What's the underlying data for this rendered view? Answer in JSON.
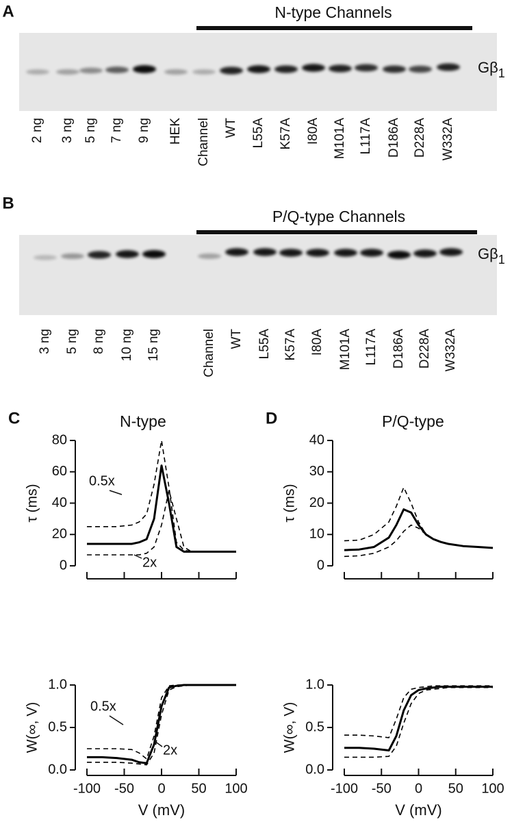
{
  "panels": {
    "A": {
      "label": "A",
      "title": "N-type Channels",
      "band_label": {
        "main": "Gβ",
        "sub": "1"
      },
      "lanes": [
        "2 ng",
        "3 ng",
        "5 ng",
        "7 ng",
        "9 ng",
        "HEK",
        "Channel",
        "WT",
        "L55A",
        "K57A",
        "I80A",
        "M101A",
        "L117A",
        "D186A",
        "D228A",
        "W332A"
      ]
    },
    "B": {
      "label": "B",
      "title": "P/Q-type Channels",
      "band_label": {
        "main": "Gβ",
        "sub": "1"
      },
      "lanes": [
        "3 ng",
        "5 ng",
        "8 ng",
        "10 ng",
        "15 ng",
        "Channel",
        "WT",
        "L55A",
        "K57A",
        "I80A",
        "M101A",
        "L117A",
        "D186A",
        "D228A",
        "W332A"
      ]
    }
  },
  "chart_data": [
    {
      "type": "line",
      "panel": "C",
      "title": "N-type",
      "ylabel": "τ (ms)",
      "xlim": [
        -100,
        100
      ],
      "xticks": [
        -100,
        -50,
        0,
        50,
        100
      ],
      "xtick_labels": false,
      "ylim": [
        0,
        80
      ],
      "yticks": [
        0,
        20,
        40,
        60,
        80
      ],
      "x": [
        -100,
        -80,
        -60,
        -40,
        -30,
        -20,
        -10,
        0,
        10,
        20,
        30,
        40,
        60,
        80,
        100
      ],
      "series": [
        {
          "color": "#000000",
          "dashed": false,
          "values": [
            14,
            14,
            14,
            14,
            15,
            17,
            30,
            64,
            40,
            12,
            9,
            9,
            9,
            9,
            9
          ]
        },
        {
          "color": "#000000",
          "dashed": true,
          "values": [
            25,
            25,
            25,
            26,
            28,
            33,
            52,
            80,
            50,
            15,
            10,
            9,
            9,
            9,
            9
          ]
        },
        {
          "color": "#000000",
          "dashed": true,
          "values": [
            7,
            7,
            7,
            7,
            7,
            8,
            12,
            26,
            48,
            30,
            12,
            9,
            9,
            9,
            9
          ]
        }
      ],
      "annotations": [
        "0.5x",
        "2x"
      ]
    },
    {
      "type": "line",
      "panel": "D",
      "title": "P/Q-type",
      "ylabel": "τ (ms)",
      "xlim": [
        -100,
        100
      ],
      "xticks": [
        -100,
        -50,
        0,
        50,
        100
      ],
      "xtick_labels": false,
      "ylim": [
        0,
        40
      ],
      "yticks": [
        0,
        10,
        20,
        30,
        40
      ],
      "x": [
        -100,
        -80,
        -60,
        -40,
        -30,
        -20,
        -10,
        0,
        10,
        20,
        30,
        40,
        60,
        80,
        100
      ],
      "series": [
        {
          "color": "#000000",
          "dashed": false,
          "values": [
            5,
            5.2,
            6,
            9,
            13,
            18,
            17,
            13,
            10,
            8.5,
            7.6,
            7,
            6.3,
            6,
            5.7
          ]
        },
        {
          "color": "#000000",
          "dashed": true,
          "values": [
            8,
            8.2,
            10,
            14,
            19,
            25,
            20,
            14,
            10,
            8.5,
            7.6,
            7,
            6.3,
            6,
            5.7
          ]
        },
        {
          "color": "#000000",
          "dashed": true,
          "values": [
            3,
            3.2,
            4,
            6,
            8,
            11,
            13,
            12,
            10,
            8.5,
            7.6,
            7,
            6.3,
            6,
            5.7
          ]
        }
      ]
    },
    {
      "type": "line",
      "ylabel": "W(∞, V)",
      "xlabel": "V (mV)",
      "xlim": [
        -100,
        100
      ],
      "xticks": [
        -100,
        -50,
        0,
        50,
        100
      ],
      "xtick_labels": true,
      "ylim": [
        0,
        1
      ],
      "yticks": [
        {
          "value": 0,
          "label": "0.0"
        },
        0.5,
        {
          "value": 1,
          "label": "1.0"
        }
      ],
      "x": [
        -100,
        -80,
        -60,
        -40,
        -30,
        -20,
        -10,
        0,
        10,
        20,
        30,
        40,
        60,
        80,
        100
      ],
      "series": [
        {
          "color": "#000000",
          "dashed": false,
          "values": [
            0.15,
            0.15,
            0.14,
            0.12,
            0.09,
            0.08,
            0.3,
            0.75,
            0.97,
            0.99,
            1,
            1,
            1,
            1,
            1
          ]
        },
        {
          "color": "#000000",
          "dashed": true,
          "values": [
            0.25,
            0.25,
            0.25,
            0.24,
            0.2,
            0.13,
            0.4,
            0.85,
            0.99,
            1,
            1,
            1,
            1,
            1,
            1
          ]
        },
        {
          "color": "#000000",
          "dashed": true,
          "values": [
            0.09,
            0.09,
            0.09,
            0.08,
            0.07,
            0.06,
            0.2,
            0.65,
            0.94,
            0.98,
            0.99,
            1,
            1,
            1,
            1
          ]
        }
      ],
      "annotations": [
        "0.5x",
        "2x"
      ]
    },
    {
      "type": "line",
      "ylabel": "W(∞, V)",
      "xlabel": "V (mV)",
      "xlim": [
        -100,
        100
      ],
      "xticks": [
        -100,
        -50,
        0,
        50,
        100
      ],
      "xtick_labels": true,
      "ylim": [
        0,
        1
      ],
      "yticks": [
        {
          "value": 0,
          "label": "0.0"
        },
        0.5,
        {
          "value": 1,
          "label": "1.0"
        }
      ],
      "x": [
        -100,
        -80,
        -60,
        -40,
        -30,
        -20,
        -10,
        0,
        10,
        20,
        30,
        40,
        60,
        80,
        100
      ],
      "series": [
        {
          "color": "#000000",
          "dashed": false,
          "values": [
            0.26,
            0.26,
            0.25,
            0.23,
            0.4,
            0.7,
            0.88,
            0.94,
            0.96,
            0.97,
            0.98,
            0.98,
            0.98,
            0.98,
            0.98
          ]
        },
        {
          "color": "#000000",
          "dashed": true,
          "values": [
            0.41,
            0.41,
            0.4,
            0.38,
            0.6,
            0.85,
            0.95,
            0.97,
            0.98,
            0.99,
            0.99,
            0.99,
            0.99,
            0.99,
            0.99
          ]
        },
        {
          "color": "#000000",
          "dashed": true,
          "values": [
            0.15,
            0.15,
            0.15,
            0.16,
            0.28,
            0.55,
            0.78,
            0.9,
            0.94,
            0.95,
            0.96,
            0.97,
            0.97,
            0.97,
            0.97
          ]
        }
      ]
    }
  ]
}
